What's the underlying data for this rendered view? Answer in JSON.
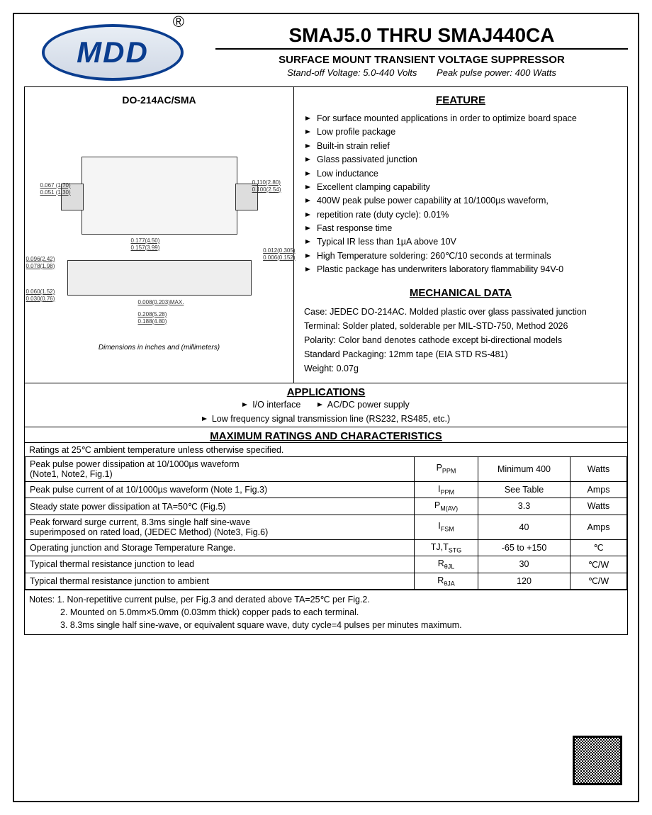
{
  "logo": {
    "text": "MDD",
    "registered": "®"
  },
  "header": {
    "title": "SMAJ5.0 THRU SMAJ440CA",
    "subtitle": "SURFACE MOUNT TRANSIENT VOLTAGE SUPPRESSOR",
    "spec1": "Stand-off Voltage: 5.0-440 Volts",
    "spec2": "Peak pulse power: 400 Watts"
  },
  "package": {
    "label": "DO-214AC/SMA",
    "dim_note": "Dimensions in inches and (millimeters)",
    "dims": {
      "a1": "0.067 (1.70)",
      "a2": "0.051 (1.30)",
      "b1": "0.110(2.80)",
      "b2": "0.100(2.54)",
      "c1": "0.177(4.50)",
      "c2": "0.157(3.99)",
      "d1": "0.012(0.305)",
      "d2": "0.006(0.152)",
      "e1": "0.096(2.42)",
      "e2": "0.078(1.98)",
      "f1": "0.060(1.52)",
      "f2": "0.030(0.76)",
      "g": "0.008(0.203)MAX.",
      "h1": "0.208(5.28)",
      "h2": "0.188(4.80)"
    }
  },
  "feature": {
    "title": "FEATURE",
    "items": [
      "For surface mounted applications in order to optimize board space",
      "Low profile package",
      "Built-in strain relief",
      "Glass passivated junction",
      "Low inductance",
      "Excellent clamping capability",
      "400W peak pulse power capability at 10/1000µs waveform,",
      "repetition rate (duty cycle): 0.01%",
      "Fast response time",
      "Typical IR less than 1µA above 10V",
      "High Temperature soldering: 260℃/10 seconds at terminals",
      "Plastic package has underwriters laboratory flammability 94V-0"
    ]
  },
  "mechanical": {
    "title": "MECHANICAL DATA",
    "lines": [
      "Case: JEDEC DO-214AC. Molded plastic over glass passivated junction",
      "Terminal: Solder plated, solderable per MIL-STD-750, Method 2026",
      "Polarity: Color band denotes cathode except bi-directional models",
      "Standard Packaging: 12mm tape (EIA STD RS-481)",
      "Weight: 0.07g"
    ]
  },
  "applications": {
    "title": "APPLICATIONS",
    "row1": [
      "I/O interface",
      "AC/DC power supply"
    ],
    "row2": [
      "Low frequency signal transmission line (RS232, RS485, etc.)"
    ]
  },
  "ratings": {
    "title": "MAXIMUM RATINGS AND CHARACTERISTICS",
    "condition": "Ratings at 25℃ ambient temperature unless otherwise specified.",
    "rows": [
      {
        "param": "Peak pulse power dissipation at 10/1000µs waveform\n(Note1, Note2, Fig.1)",
        "sym": "P",
        "sub": "PPM",
        "val": "Minimum 400",
        "unit": "Watts"
      },
      {
        "param": "Peak pulse current of at 10/1000µs waveform (Note 1, Fig.3)",
        "sym": "I",
        "sub": "PPM",
        "val": "See Table",
        "unit": "Amps"
      },
      {
        "param": "Steady state power dissipation at TA=50℃ (Fig.5)",
        "sym": "P",
        "sub": "M(AV)",
        "val": "3.3",
        "unit": "Watts"
      },
      {
        "param": "Peak forward surge current, 8.3ms single half sine-wave\nsuperimposed on rated load, (JEDEC Method) (Note3, Fig.6)",
        "sym": "I",
        "sub": "FSM",
        "val": "40",
        "unit": "Amps"
      },
      {
        "param": "Operating junction and Storage Temperature Range.",
        "sym": "TJ,T",
        "sub": "STG",
        "val": "-65 to +150",
        "unit": "℃"
      },
      {
        "param": "Typical thermal resistance junction to lead",
        "sym": "R",
        "sub": "θJL",
        "val": "30",
        "unit": "℃/W"
      },
      {
        "param": "Typical thermal resistance junction to ambient",
        "sym": "R",
        "sub": "θJA",
        "val": "120",
        "unit": "℃/W"
      }
    ]
  },
  "notes": {
    "n1": "Notes: 1. Non-repetitive current pulse, per Fig.3 and derated above TA=25℃ per Fig.2.",
    "n2": "2. Mounted on 5.0mm×5.0mm (0.03mm thick) copper pads to each terminal.",
    "n3": "3. 8.3ms single half sine-wave, or equivalent square wave, duty cycle=4 pulses per minutes maximum."
  },
  "colors": {
    "border": "#000000",
    "logo_blue": "#0a3d8f",
    "text": "#000000",
    "bg": "#ffffff"
  }
}
